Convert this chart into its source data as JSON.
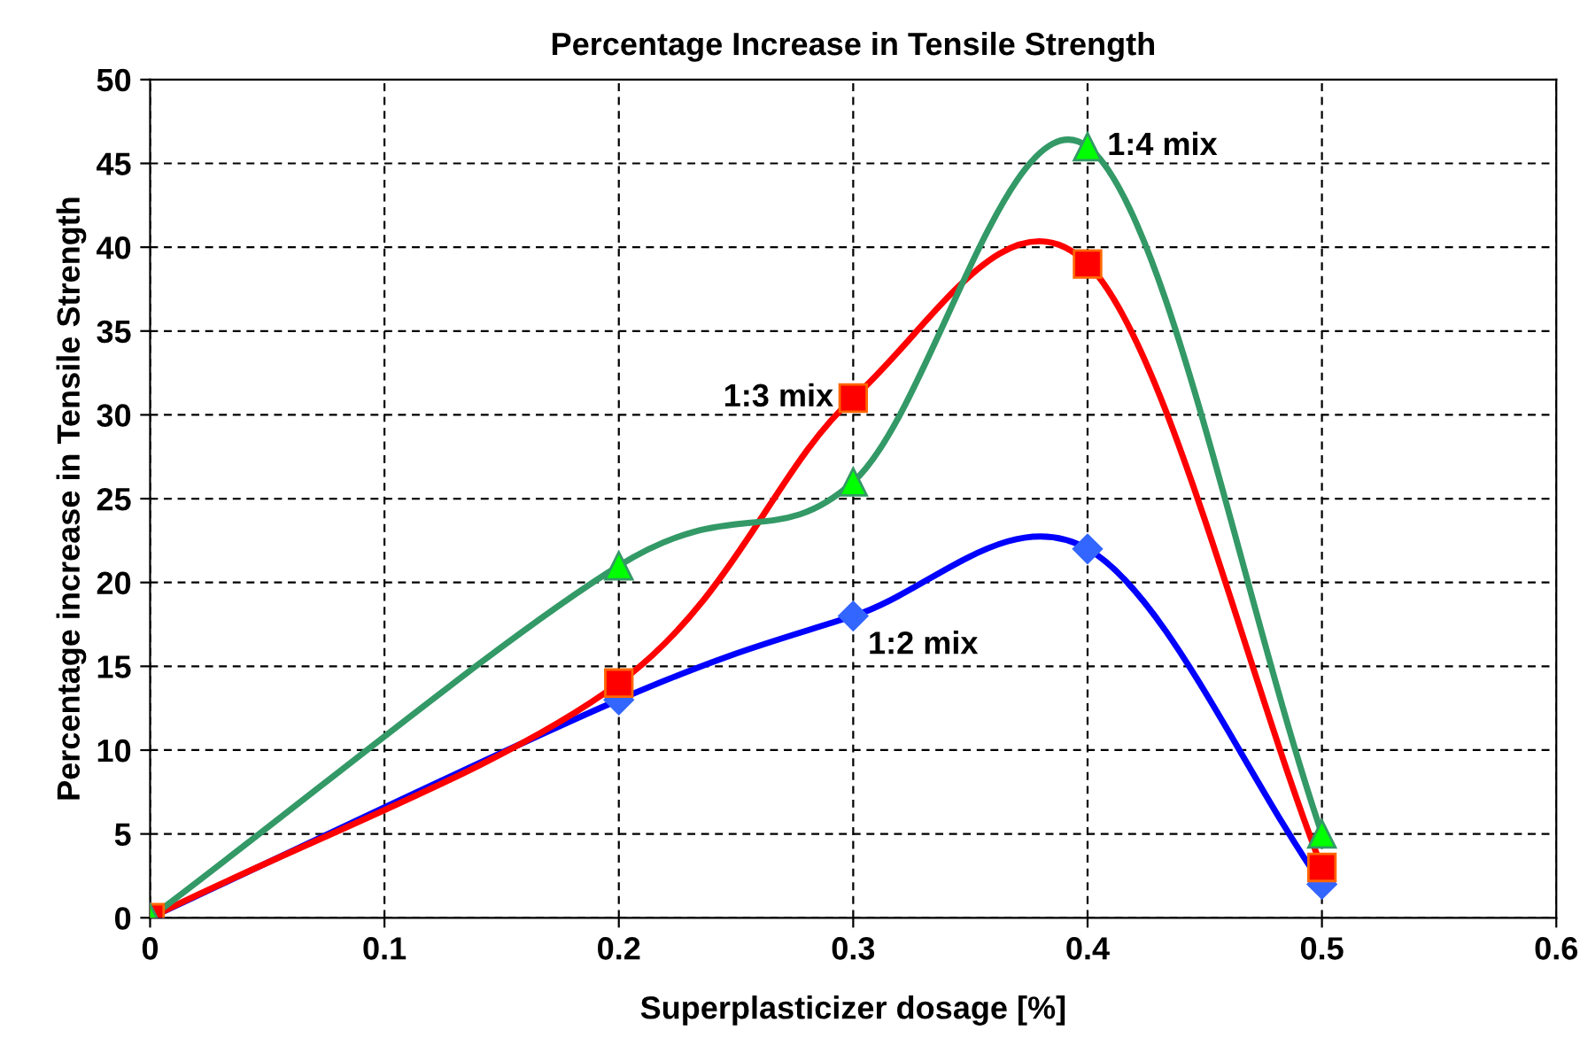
{
  "chart_data": {
    "type": "line",
    "title": "Percentage Increase in Tensile Strength",
    "xlabel": "Superplasticizer dosage [%]",
    "ylabel": "Percentage increase in Tensile Strength",
    "x": [
      0,
      0.2,
      0.3,
      0.4,
      0.5
    ],
    "series": [
      {
        "name": "1:2 mix",
        "color": "#0000ff",
        "marker": "diamond",
        "values": [
          0,
          13,
          18,
          22,
          2
        ]
      },
      {
        "name": "1:3 mix",
        "color": "#ff0000",
        "marker": "square",
        "values": [
          0,
          14,
          31,
          39,
          3
        ]
      },
      {
        "name": "1:4 mix",
        "color": "#339966",
        "marker": "triangle",
        "values": [
          0,
          21,
          26,
          46,
          5
        ]
      }
    ],
    "xlim": [
      0,
      0.6
    ],
    "xticks": [
      0,
      0.1,
      0.2,
      0.3,
      0.4,
      0.5,
      0.6
    ],
    "ylim": [
      0,
      50
    ],
    "yticks": [
      0,
      5,
      10,
      15,
      20,
      25,
      30,
      35,
      40,
      45,
      50
    ],
    "grid": true,
    "legend": false,
    "line_style": "solid"
  }
}
